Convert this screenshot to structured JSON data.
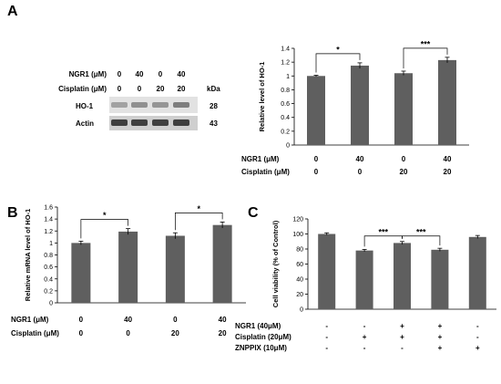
{
  "panels": {
    "a": "A",
    "b": "B",
    "c": "C"
  },
  "blot": {
    "row_labels": [
      "NGR1 (μM)",
      "Cisplatin (μM)"
    ],
    "ngr1_values": [
      "0",
      "40",
      "0",
      "40"
    ],
    "cisplatin_values": [
      "0",
      "0",
      "20",
      "20"
    ],
    "kda_label": "kDa",
    "bands": [
      {
        "name": "HO-1",
        "kda": "28",
        "intensity": [
          0.35,
          0.45,
          0.42,
          0.55
        ]
      },
      {
        "name": "Actin",
        "kda": "43",
        "intensity": [
          0.9,
          0.9,
          0.9,
          0.9
        ]
      }
    ]
  },
  "chart_data": [
    {
      "panel": "A",
      "type": "bar",
      "ylabel": "Relative level of HO-1",
      "ylim": [
        0,
        1.4
      ],
      "yticks": [
        "0",
        "0.2",
        "0.4",
        "0.6",
        "0.8",
        "1",
        "1.2",
        "1.4"
      ],
      "categories": [
        "1",
        "2",
        "3",
        "4"
      ],
      "values": [
        1.0,
        1.15,
        1.04,
        1.23
      ],
      "errors": [
        0.01,
        0.04,
        0.03,
        0.04
      ],
      "significance": [
        {
          "from": 0,
          "to": 1,
          "label": "*"
        },
        {
          "from": 2,
          "to": 3,
          "label": "***"
        }
      ],
      "condition_rows": [
        {
          "label": "NGR1 (μM)",
          "values": [
            "0",
            "40",
            "0",
            "40"
          ]
        },
        {
          "label": "Cisplatin (μM)",
          "values": [
            "0",
            "0",
            "20",
            "20"
          ]
        }
      ],
      "color": "#5f5f5f"
    },
    {
      "panel": "B",
      "type": "bar",
      "ylabel": "Relative mRNA level of HO-1",
      "ylim": [
        0,
        1.6
      ],
      "yticks": [
        "0",
        "0.2",
        "0.4",
        "0.6",
        "0.8",
        "1",
        "1.2",
        "1.4",
        "1.6"
      ],
      "categories": [
        "1",
        "2",
        "3",
        "4"
      ],
      "values": [
        1.0,
        1.19,
        1.12,
        1.3
      ],
      "errors": [
        0.03,
        0.05,
        0.05,
        0.05
      ],
      "significance": [
        {
          "from": 0,
          "to": 1,
          "label": "*"
        },
        {
          "from": 2,
          "to": 3,
          "label": "*"
        }
      ],
      "condition_rows": [
        {
          "label": "NGR1 (μM)",
          "values": [
            "0",
            "40",
            "0",
            "40"
          ]
        },
        {
          "label": "Cisplatin (μM)",
          "values": [
            "0",
            "0",
            "20",
            "20"
          ]
        }
      ],
      "color": "#5f5f5f"
    },
    {
      "panel": "C",
      "type": "bar",
      "ylabel": "Cell viability (% of Control)",
      "ylim": [
        0,
        120
      ],
      "yticks": [
        "0",
        "20",
        "40",
        "60",
        "80",
        "100",
        "120"
      ],
      "categories": [
        "1",
        "2",
        "3",
        "4",
        "5"
      ],
      "values": [
        100,
        78,
        88,
        79,
        96
      ],
      "errors": [
        1.5,
        1.5,
        2,
        2,
        2
      ],
      "significance": [
        {
          "from": 1,
          "to": 2,
          "label": "***"
        },
        {
          "from": 2,
          "to": 3,
          "label": "***"
        }
      ],
      "condition_rows": [
        {
          "label": "NGR1 (40μM)",
          "values": [
            "-",
            "-",
            "+",
            "+",
            "-"
          ]
        },
        {
          "label": "Cisplatin (20μM)",
          "values": [
            "-",
            "+",
            "+",
            "+",
            "-"
          ]
        },
        {
          "label": "ZNPPIX (10μM)",
          "values": [
            "-",
            "-",
            "-",
            "+",
            "+"
          ]
        }
      ],
      "color": "#5f5f5f"
    }
  ]
}
